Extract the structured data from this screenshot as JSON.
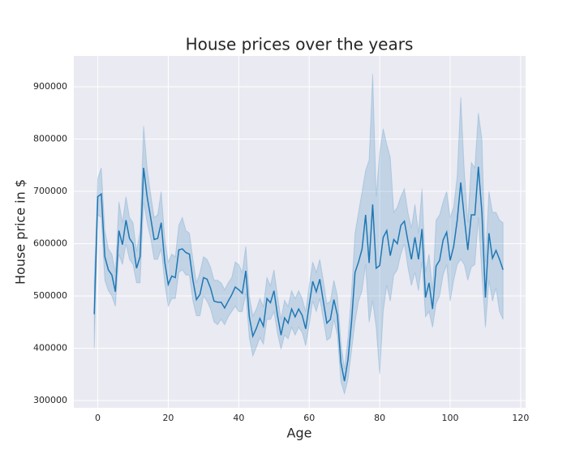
{
  "chart_data": {
    "type": "line",
    "title": "House prices over the years",
    "xlabel": "Age",
    "ylabel": "House price in $",
    "color": "#1f77b4",
    "band_color": "#1f77b4",
    "grid": true,
    "xlim": [
      -6.8,
      121.4
    ],
    "ylim": [
      286000,
      959000
    ],
    "xticks": [
      0,
      20,
      40,
      60,
      80,
      100,
      120
    ],
    "yticks": [
      300000,
      400000,
      500000,
      600000,
      700000,
      800000,
      900000
    ],
    "x": [
      -1,
      0,
      1,
      2,
      3,
      4,
      5,
      6,
      7,
      8,
      9,
      10,
      11,
      12,
      13,
      14,
      15,
      16,
      17,
      18,
      19,
      20,
      21,
      22,
      23,
      24,
      25,
      26,
      27,
      28,
      29,
      30,
      31,
      32,
      33,
      34,
      35,
      36,
      37,
      38,
      39,
      40,
      41,
      42,
      43,
      44,
      45,
      46,
      47,
      48,
      49,
      50,
      51,
      52,
      53,
      54,
      55,
      56,
      57,
      58,
      59,
      60,
      61,
      62,
      63,
      64,
      65,
      66,
      67,
      68,
      69,
      70,
      71,
      72,
      73,
      74,
      75,
      76,
      77,
      78,
      79,
      80,
      81,
      82,
      83,
      84,
      85,
      86,
      87,
      88,
      89,
      90,
      91,
      92,
      93,
      94,
      95,
      96,
      97,
      98,
      99,
      100,
      101,
      102,
      103,
      104,
      105,
      106,
      107,
      108,
      109,
      110,
      111,
      112,
      113,
      114,
      115
    ],
    "values": [
      465000,
      690000,
      695000,
      575000,
      550000,
      540000,
      508000,
      625000,
      598000,
      645000,
      610000,
      600000,
      553000,
      575000,
      745000,
      690000,
      650000,
      608000,
      610000,
      640000,
      565000,
      522000,
      538000,
      535000,
      588000,
      590000,
      583000,
      580000,
      530000,
      493000,
      503000,
      535000,
      532000,
      515000,
      490000,
      488000,
      488000,
      477000,
      490000,
      502000,
      517000,
      512000,
      505000,
      548000,
      460000,
      423000,
      438000,
      457000,
      442000,
      495000,
      487000,
      510000,
      463000,
      425000,
      458000,
      448000,
      475000,
      460000,
      475000,
      463000,
      437000,
      483000,
      528000,
      508000,
      532000,
      490000,
      448000,
      455000,
      493000,
      463000,
      372000,
      337000,
      378000,
      450000,
      545000,
      565000,
      590000,
      655000,
      563000,
      675000,
      553000,
      558000,
      612000,
      625000,
      577000,
      608000,
      600000,
      635000,
      643000,
      605000,
      570000,
      612000,
      570000,
      628000,
      497000,
      525000,
      475000,
      557000,
      568000,
      607000,
      622000,
      568000,
      595000,
      645000,
      717000,
      650000,
      588000,
      655000,
      655000,
      747000,
      660000,
      497000,
      620000,
      572000,
      587000,
      570000,
      550000
    ],
    "lower": [
      400000,
      655000,
      650000,
      530000,
      510000,
      500000,
      480000,
      580000,
      560000,
      600000,
      570000,
      560000,
      525000,
      525000,
      680000,
      640000,
      610000,
      570000,
      570000,
      590000,
      525000,
      480000,
      495000,
      495000,
      545000,
      550000,
      540000,
      540000,
      490000,
      462000,
      462000,
      500000,
      490000,
      475000,
      450000,
      445000,
      455000,
      445000,
      460000,
      470000,
      480000,
      470000,
      470000,
      505000,
      420000,
      385000,
      402000,
      420000,
      408000,
      455000,
      455000,
      470000,
      428000,
      398000,
      425000,
      418000,
      440000,
      425000,
      440000,
      430000,
      405000,
      445000,
      490000,
      470000,
      495000,
      455000,
      415000,
      420000,
      455000,
      425000,
      335000,
      313000,
      340000,
      395000,
      450000,
      490000,
      510000,
      560000,
      450000,
      490000,
      440000,
      350000,
      470000,
      520000,
      490000,
      540000,
      550000,
      580000,
      600000,
      555000,
      520000,
      545000,
      510000,
      565000,
      460000,
      470000,
      440000,
      485000,
      500000,
      540000,
      560000,
      490000,
      530000,
      560000,
      570000,
      560000,
      530000,
      555000,
      560000,
      650000,
      540000,
      440000,
      530000,
      490000,
      515000,
      470000,
      455000
    ],
    "upper": [
      530000,
      725000,
      745000,
      625000,
      590000,
      580000,
      545000,
      680000,
      640000,
      690000,
      650000,
      640000,
      585000,
      625000,
      825000,
      745000,
      695000,
      650000,
      655000,
      700000,
      610000,
      565000,
      580000,
      575000,
      635000,
      650000,
      625000,
      620000,
      570000,
      525000,
      545000,
      575000,
      570000,
      555000,
      530000,
      530000,
      525000,
      512000,
      525000,
      535000,
      565000,
      560000,
      545000,
      595000,
      500000,
      462000,
      475000,
      495000,
      480000,
      535000,
      520000,
      550000,
      500000,
      455000,
      492000,
      480000,
      510000,
      495000,
      510000,
      495000,
      470000,
      520000,
      565000,
      545000,
      570000,
      530000,
      485000,
      490000,
      530000,
      500000,
      410000,
      360000,
      420000,
      505000,
      620000,
      660000,
      700000,
      740000,
      760000,
      925000,
      690000,
      775000,
      820000,
      790000,
      765000,
      660000,
      670000,
      690000,
      705000,
      660000,
      630000,
      675000,
      620000,
      705000,
      545000,
      580000,
      510000,
      645000,
      655000,
      680000,
      700000,
      650000,
      670000,
      730000,
      880000,
      740000,
      640000,
      755000,
      745000,
      850000,
      800000,
      565000,
      700000,
      660000,
      660000,
      645000,
      640000
    ]
  }
}
